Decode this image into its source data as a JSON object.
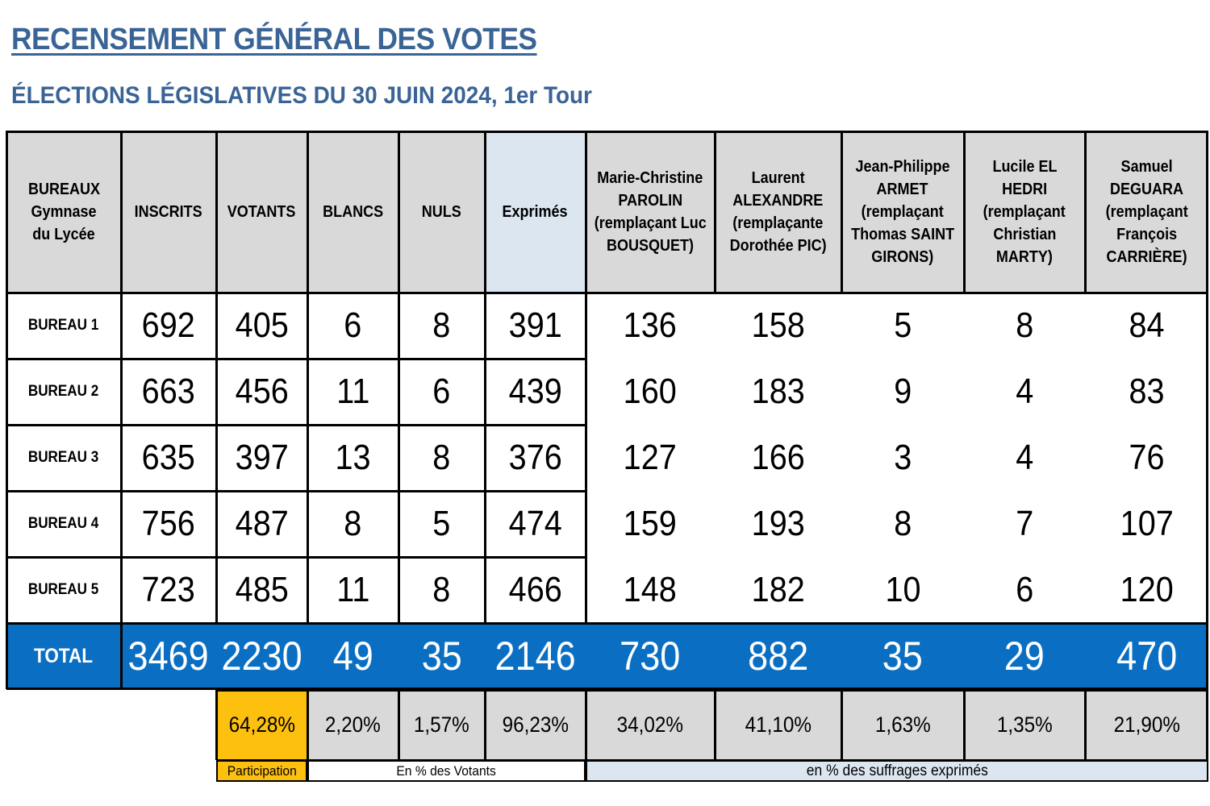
{
  "title": "RECENSEMENT GÉNÉRAL DES VOTES",
  "subtitle": "ÉLECTIONS LÉGISLATIVES DU 30 JUIN 2024, 1er Tour",
  "headers": {
    "bureaux": [
      "BUREAUX",
      "Gymnase",
      "du Lycée"
    ],
    "inscrits": "INSCRITS",
    "votants": "VOTANTS",
    "blancs": "BLANCS",
    "nuls": "NULS",
    "exprimes": "Exprimés",
    "candidates": [
      [
        "Marie-Christine",
        "PAROLIN",
        "(remplaçant Luc",
        "BOUSQUET)"
      ],
      [
        "Laurent",
        "ALEXANDRE",
        "(remplaçante",
        "Dorothée PIC)"
      ],
      [
        "Jean-Philippe",
        "ARMET",
        "(remplaçant",
        "Thomas SAINT",
        "GIRONS)"
      ],
      [
        "Lucile EL",
        "HEDRI",
        "(remplaçant",
        "Christian",
        "MARTY)"
      ],
      [
        "Samuel",
        "DEGUARA",
        "(remplaçant",
        "François",
        "CARRIÈRE)"
      ]
    ]
  },
  "rows": [
    {
      "label": "BUREAU 1",
      "values": [
        "692",
        "405",
        "6",
        "8",
        "391",
        "136",
        "158",
        "5",
        "8",
        "84"
      ]
    },
    {
      "label": "BUREAU 2",
      "values": [
        "663",
        "456",
        "11",
        "6",
        "439",
        "160",
        "183",
        "9",
        "4",
        "83"
      ]
    },
    {
      "label": "BUREAU 3",
      "values": [
        "635",
        "397",
        "13",
        "8",
        "376",
        "127",
        "166",
        "3",
        "4",
        "76"
      ]
    },
    {
      "label": "BUREAU 4",
      "values": [
        "756",
        "487",
        "8",
        "5",
        "474",
        "159",
        "193",
        "8",
        "7",
        "107"
      ]
    },
    {
      "label": "BUREAU 5",
      "values": [
        "723",
        "485",
        "11",
        "8",
        "466",
        "148",
        "182",
        "10",
        "6",
        "120"
      ]
    }
  ],
  "total": {
    "label": "TOTAL",
    "values": [
      "3469",
      "2230",
      "49",
      "35",
      "2146",
      "730",
      "882",
      "35",
      "29",
      "470"
    ]
  },
  "percentages": [
    "64,28%",
    "2,20%",
    "1,57%",
    "96,23%",
    "34,02%",
    "41,10%",
    "1,63%",
    "1,35%",
    "21,90%"
  ],
  "footer": {
    "participation": "Participation",
    "votants_pct": "En % des Votants",
    "exprimes_pct": "en % des suffrages exprimés"
  },
  "colors": {
    "title": "#3a6496",
    "header_gray": "#d9d9d9",
    "exprimes_blue": "#dce6f1",
    "total_blue": "#0a6fc2",
    "participation_yellow": "#fdc00f"
  }
}
